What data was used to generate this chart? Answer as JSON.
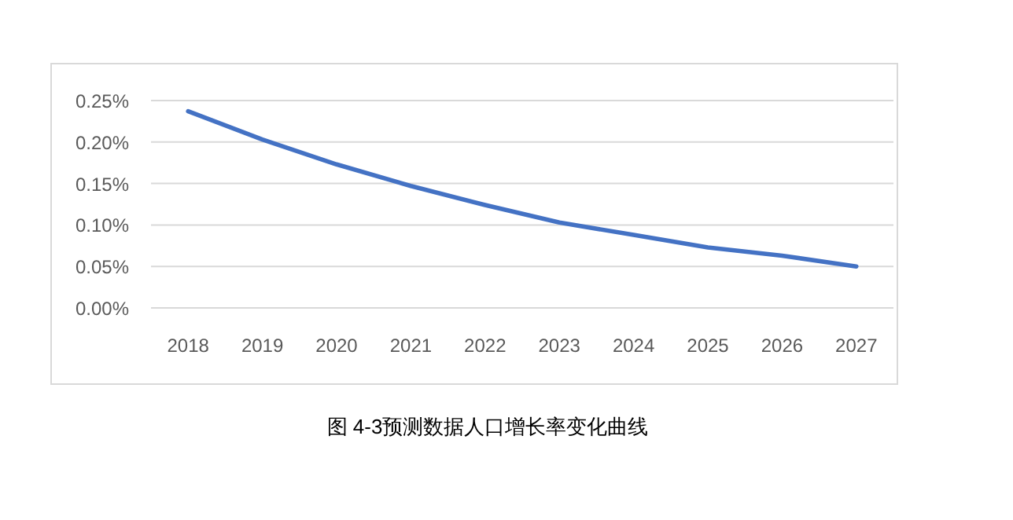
{
  "chart_data": {
    "type": "line",
    "categories": [
      "2018",
      "2019",
      "2020",
      "2021",
      "2022",
      "2023",
      "2024",
      "2025",
      "2026",
      "2027"
    ],
    "series": [
      {
        "color": "#4472c4",
        "values": [
          0.237,
          0.203,
          0.173,
          0.147,
          0.124,
          0.103,
          0.088,
          0.073,
          0.063,
          0.05
        ]
      }
    ],
    "ylim": [
      0,
      0.25
    ],
    "yticks": [
      {
        "value": 0,
        "label": "0.00%"
      },
      {
        "value": 0.05,
        "label": "0.05%"
      },
      {
        "value": 0.1,
        "label": "0.10%"
      },
      {
        "value": 0.15,
        "label": "0.15%"
      },
      {
        "value": 0.2,
        "label": "0.20%"
      },
      {
        "value": 0.25,
        "label": "0.25%"
      }
    ],
    "grid": "y",
    "marker": "none",
    "line_style": "solid",
    "annotations": [
      "图 4-3预测数据人口增长率变化曲线"
    ]
  }
}
